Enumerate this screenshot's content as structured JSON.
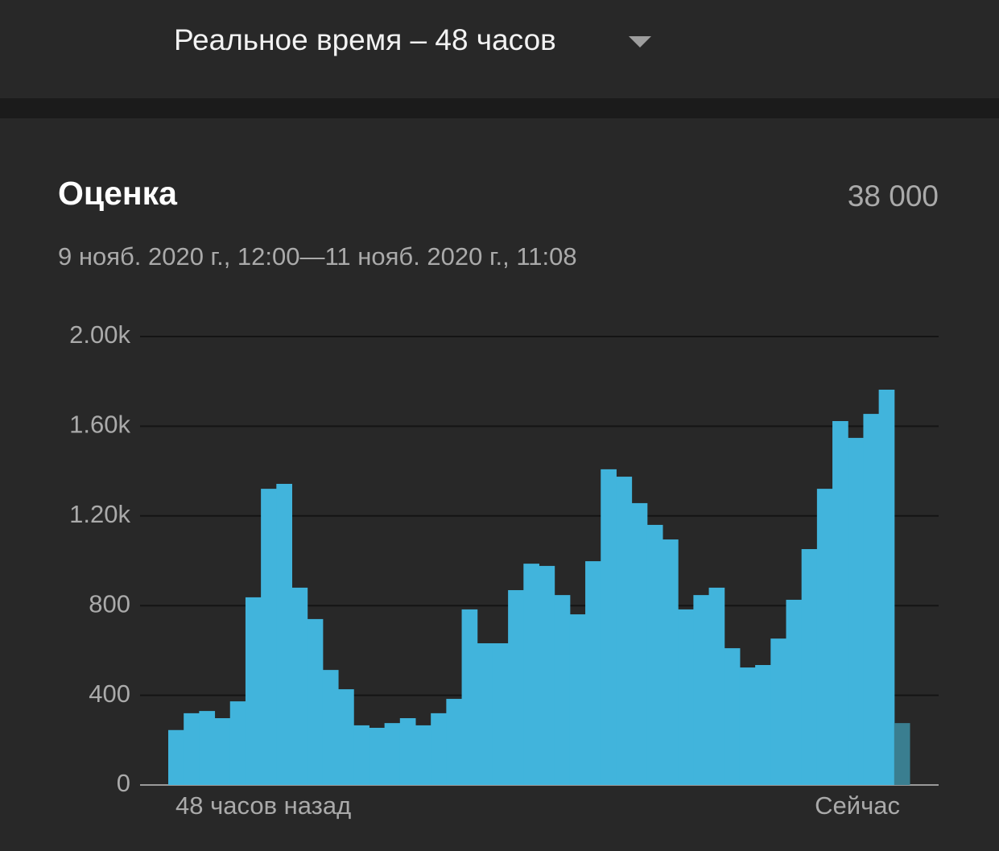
{
  "header": {
    "title": "Реальное время – 48 часов"
  },
  "card": {
    "title": "Оценка",
    "total": "38 000",
    "subtitle": "9 нояб. 2020 г., 12:00—11 нояб. 2020 г., 11:08"
  },
  "chart_data": {
    "type": "bar",
    "values": [
      245,
      320,
      330,
      298,
      373,
      837,
      1321,
      1343,
      880,
      740,
      513,
      427,
      266,
      255,
      276,
      298,
      266,
      320,
      384,
      783,
      632,
      632,
      869,
      987,
      977,
      847,
      761,
      998,
      1408,
      1375,
      1257,
      1160,
      1095,
      783,
      847,
      880,
      610,
      524,
      535,
      653,
      826,
      1052,
      1321,
      1623,
      1548,
      1655,
      1763,
      276
    ],
    "color": "#41b4dc",
    "current_color": "#3a7e90",
    "ylim": [
      0,
      2000
    ],
    "yticks": [
      0,
      400,
      800,
      {
        "value": 1200,
        "label": "1.20k"
      },
      {
        "value": 1600,
        "label": "1.60k"
      },
      {
        "value": 2000,
        "label": "2.00k"
      }
    ],
    "xlabels": [
      "48 часов назад",
      "Сейчас"
    ],
    "grid": true
  }
}
